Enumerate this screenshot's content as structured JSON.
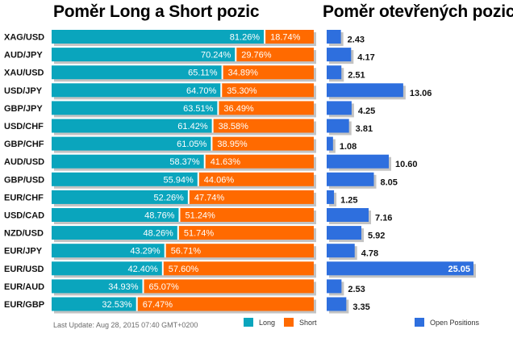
{
  "titles": {
    "left": "Poměr Long a Short pozic",
    "right": "Poměr otevřených pozic"
  },
  "footer": {
    "last_update": "Last Update: Aug 28, 2015 07:40 GMT+0200"
  },
  "legend": {
    "long": "Long",
    "short": "Short",
    "open_positions": "Open Positions"
  },
  "colors": {
    "long": "#0aa5bd",
    "short": "#ff6a00",
    "open_positions": "#2e6fde",
    "shadow": "#c3c3c3",
    "bar_text": "#ffffff"
  },
  "chart_data": [
    {
      "type": "bar",
      "orientation": "horizontal",
      "stacked": "percent",
      "title": "Poměr Long a Short pozic",
      "categories": [
        "XAG/USD",
        "AUD/JPY",
        "XAU/USD",
        "USD/JPY",
        "GBP/JPY",
        "USD/CHF",
        "GBP/CHF",
        "AUD/USD",
        "GBP/USD",
        "EUR/CHF",
        "USD/CAD",
        "NZD/USD",
        "EUR/JPY",
        "EUR/USD",
        "EUR/AUD",
        "EUR/GBP"
      ],
      "series": [
        {
          "name": "Long",
          "values": [
            81.26,
            70.24,
            65.11,
            64.7,
            63.51,
            61.42,
            61.05,
            58.37,
            55.94,
            52.26,
            48.76,
            48.26,
            43.29,
            42.4,
            34.93,
            32.53
          ],
          "labels": [
            "81.26%",
            "70.24%",
            "65.11%",
            "64.70%",
            "63.51%",
            "61.42%",
            "61.05%",
            "58.37%",
            "55.94%",
            "52.26%",
            "48.76%",
            "48.26%",
            "43.29%",
            "42.40%",
            "34.93%",
            "32.53%"
          ]
        },
        {
          "name": "Short",
          "values": [
            18.74,
            29.76,
            34.89,
            35.3,
            36.49,
            38.58,
            38.95,
            41.63,
            44.06,
            47.74,
            51.24,
            51.74,
            56.71,
            57.6,
            65.07,
            67.47
          ],
          "labels": [
            "18.74%",
            "29.76%",
            "34.89%",
            "35.30%",
            "36.49%",
            "38.58%",
            "38.95%",
            "41.63%",
            "44.06%",
            "47.74%",
            "51.24%",
            "51.74%",
            "56.71%",
            "57.60%",
            "65.07%",
            "67.47%"
          ]
        }
      ],
      "xlim": [
        0,
        100
      ],
      "legend": "bottom"
    },
    {
      "type": "bar",
      "orientation": "horizontal",
      "title": "Poměr otevřených pozic",
      "categories": [
        "XAG/USD",
        "AUD/JPY",
        "XAU/USD",
        "USD/JPY",
        "GBP/JPY",
        "USD/CHF",
        "GBP/CHF",
        "AUD/USD",
        "GBP/USD",
        "EUR/CHF",
        "USD/CAD",
        "NZD/USD",
        "EUR/JPY",
        "EUR/USD",
        "EUR/AUD",
        "EUR/GBP"
      ],
      "series": [
        {
          "name": "Open Positions",
          "values": [
            2.43,
            4.17,
            2.51,
            13.06,
            4.25,
            3.81,
            1.08,
            10.6,
            8.05,
            1.25,
            7.16,
            5.92,
            4.78,
            25.05,
            2.53,
            3.35
          ],
          "labels": [
            "2.43",
            "4.17",
            "2.51",
            "13.06",
            "4.25",
            "3.81",
            "1.08",
            "10.60",
            "8.05",
            "1.25",
            "7.16",
            "5.92",
            "4.78",
            "25.05",
            "2.53",
            "3.35"
          ]
        }
      ],
      "legend": "bottom"
    }
  ]
}
